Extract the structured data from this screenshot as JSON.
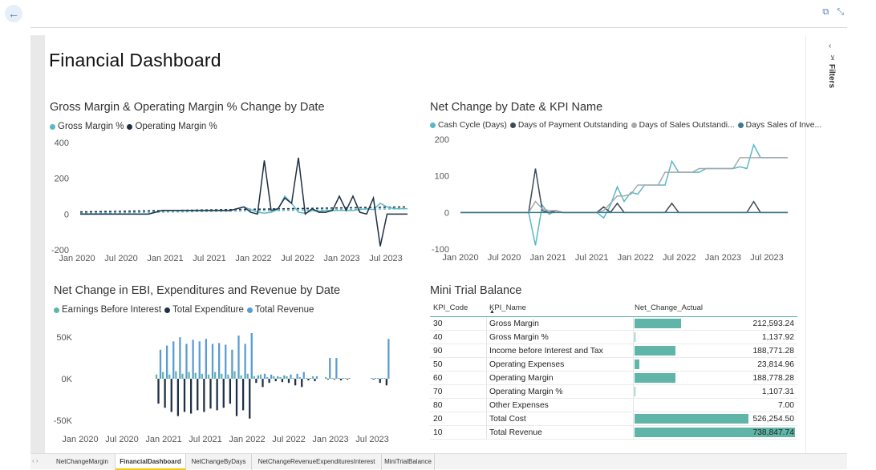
{
  "page": {
    "title": "Financial Dashboard",
    "filters_label": "Filters"
  },
  "colors": {
    "teal": "#5ab8c6",
    "navy": "#1f2f45",
    "slate": "#3e4a57",
    "gray": "#a3a9ad",
    "blue": "#5a9bd5",
    "green": "#5fb6a8"
  },
  "icons": {
    "back": "←",
    "popout": "⧉",
    "collapse": "⤡",
    "filters_chevron": "‹",
    "filter": "⊻"
  },
  "chart1": {
    "title": "Gross Margin & Operating Margin % Change by Date",
    "legend": [
      "Gross Margin %",
      "Operating Margin %"
    ]
  },
  "chart2": {
    "title": "Net Change by Date & KPI Name",
    "legend": [
      "Cash Cycle (Days)",
      "Days of Payment Outstanding",
      "Days of Sales Outstandi...",
      "Days Sales of Inve..."
    ]
  },
  "chart3": {
    "title": "Net Change in EBI, Expenditures and Revenue by Date",
    "legend": [
      "Earnings Before Interest",
      "Total Expenditure",
      "Total Revenue"
    ]
  },
  "chart_data": [
    {
      "type": "line",
      "title": "Gross Margin & Operating Margin % Change by Date",
      "xlabel": "",
      "ylabel": "",
      "x_ticks": [
        "Jan 2020",
        "Jul 2020",
        "Jan 2021",
        "Jul 2021",
        "Jan 2022",
        "Jul 2022",
        "Jan 2023",
        "Jul 2023"
      ],
      "y_ticks": [
        400,
        200,
        0,
        -200
      ],
      "ylim": [
        -200,
        400
      ],
      "xlim": [
        0,
        48
      ],
      "series": [
        {
          "name": "Gross Margin %",
          "color": "#5ab8c6",
          "x": [
            0,
            2,
            4,
            6,
            8,
            10,
            12,
            14,
            16,
            18,
            20,
            22,
            24,
            26,
            27,
            28,
            29,
            30,
            31,
            32,
            33,
            34,
            35,
            36,
            38,
            40,
            42,
            43,
            44,
            45,
            46,
            47,
            48
          ],
          "y": [
            0,
            0,
            0,
            0,
            0,
            0,
            20,
            20,
            20,
            20,
            20,
            20,
            40,
            10,
            5,
            10,
            25,
            100,
            60,
            10,
            5,
            20,
            15,
            20,
            20,
            20,
            30,
            25,
            60,
            40,
            30,
            30,
            30
          ]
        },
        {
          "name": "Operating Margin %",
          "color": "#1f2f45",
          "x": [
            0,
            2,
            4,
            6,
            8,
            10,
            12,
            14,
            16,
            18,
            20,
            22,
            24,
            25,
            26,
            27,
            28,
            29,
            30,
            31,
            32,
            33,
            34,
            35,
            36,
            37,
            38,
            39,
            40,
            41,
            42,
            43,
            44,
            45,
            46,
            47,
            48
          ],
          "y": [
            0,
            0,
            0,
            0,
            0,
            0,
            20,
            20,
            20,
            20,
            20,
            20,
            40,
            10,
            0,
            300,
            20,
            30,
            90,
            60,
            315,
            0,
            30,
            10,
            10,
            20,
            100,
            20,
            100,
            10,
            0,
            90,
            -180,
            0,
            0,
            0,
            0
          ]
        }
      ],
      "trend_lines": [
        {
          "name": "Gross Margin % trend",
          "color": "#1f2f45",
          "from": [
            0,
            12
          ],
          "to": [
            48,
            40
          ]
        },
        {
          "name": "Operating Margin % trend",
          "color": "#5ab8c6",
          "from": [
            0,
            5
          ],
          "to": [
            48,
            30
          ]
        }
      ]
    },
    {
      "type": "line",
      "title": "Net Change by Date & KPI Name",
      "xlabel": "",
      "ylabel": "",
      "x_ticks": [
        "Jan 2020",
        "Jul 2020",
        "Jan 2021",
        "Jul 2021",
        "Jan 2022",
        "Jul 2022",
        "Jan 2023",
        "Jul 2023"
      ],
      "y_ticks": [
        200,
        100,
        0,
        -100
      ],
      "ylim": [
        -100,
        200
      ],
      "xlim": [
        0,
        48
      ],
      "series": [
        {
          "name": "Cash Cycle (Days)",
          "color": "#5ab8c6",
          "x": [
            0,
            10,
            11,
            12,
            13,
            14,
            15,
            16,
            17,
            18,
            19,
            20,
            21,
            22,
            23,
            24,
            25,
            26,
            27,
            28,
            29,
            30,
            31,
            32,
            33,
            34,
            35,
            36,
            37,
            38,
            39,
            40,
            41,
            42,
            43,
            44,
            45,
            46,
            47,
            48
          ],
          "y": [
            0,
            0,
            -90,
            20,
            -5,
            5,
            0,
            0,
            0,
            0,
            0,
            0,
            -15,
            20,
            70,
            30,
            55,
            50,
            75,
            75,
            75,
            75,
            140,
            110,
            110,
            110,
            110,
            120,
            120,
            120,
            120,
            120,
            125,
            120,
            185,
            150,
            150,
            150,
            150,
            150
          ]
        },
        {
          "name": "Days of Payment Outstanding",
          "color": "#3e4a57",
          "x": [
            0,
            10,
            11,
            12,
            13,
            14,
            15,
            16,
            17,
            18,
            19,
            20,
            21,
            22,
            23,
            24,
            25,
            26,
            27,
            28,
            29,
            30,
            31,
            32,
            33,
            34,
            35,
            36,
            37,
            38,
            39,
            40,
            41,
            42,
            43,
            44,
            45,
            46,
            47,
            48
          ],
          "y": [
            0,
            0,
            120,
            5,
            0,
            5,
            0,
            0,
            0,
            0,
            0,
            0,
            15,
            0,
            25,
            0,
            0,
            0,
            0,
            0,
            0,
            0,
            25,
            0,
            0,
            0,
            0,
            0,
            0,
            0,
            0,
            0,
            0,
            0,
            30,
            0,
            0,
            0,
            0,
            0
          ]
        },
        {
          "name": "Days of Sales Outstanding",
          "color": "#a3a9ad",
          "x": [
            0,
            10,
            11,
            12,
            13,
            14,
            15,
            16,
            17,
            18,
            19,
            20,
            21,
            22,
            23,
            24,
            25,
            26,
            27,
            28,
            29,
            30,
            31,
            32,
            33,
            34,
            35,
            36,
            37,
            38,
            39,
            40,
            41,
            42,
            43,
            44,
            45,
            46,
            47,
            48
          ],
          "y": [
            0,
            0,
            30,
            10,
            5,
            5,
            0,
            0,
            0,
            0,
            0,
            0,
            5,
            25,
            45,
            45,
            50,
            75,
            75,
            75,
            75,
            110,
            110,
            110,
            110,
            110,
            120,
            120,
            120,
            120,
            120,
            120,
            150,
            150,
            150,
            150,
            150,
            150,
            150,
            150
          ]
        },
        {
          "name": "Days Sales of Inventory",
          "color": "#3c7a8a",
          "x": [
            0,
            48
          ],
          "y": [
            0,
            0
          ]
        }
      ]
    },
    {
      "type": "bar",
      "title": "Net Change in EBI, Expenditures and Revenue by Date",
      "xlabel": "",
      "ylabel": "",
      "x_ticks": [
        "Jan 2020",
        "Jul 2020",
        "Jan 2021",
        "Jul 2021",
        "Jan 2022",
        "Jul 2022",
        "Jan 2023",
        "Jul 2023"
      ],
      "y_ticks": [
        "50K",
        "0K",
        "-50K"
      ],
      "ylim": [
        -55000,
        55000
      ],
      "xlim": [
        0,
        48
      ],
      "categories": [
        12,
        13,
        14,
        15,
        16,
        17,
        18,
        19,
        20,
        21,
        22,
        23,
        24,
        25,
        26,
        27,
        28,
        29,
        30,
        31,
        32,
        33,
        34,
        35,
        36,
        38,
        39,
        40,
        41,
        45,
        46,
        47
      ],
      "series": [
        {
          "name": "Earnings Before Interest",
          "color": "#5fb6a8",
          "values": [
            5000,
            8000,
            5000,
            9000,
            6000,
            8000,
            7000,
            6000,
            5000,
            8000,
            6000,
            5000,
            9000,
            4000,
            6000,
            3000,
            5000,
            2000,
            3000,
            2000,
            3000,
            1000,
            2000,
            1000,
            3000,
            2000,
            1000,
            1000,
            1000,
            1000,
            1000,
            1000
          ]
        },
        {
          "name": "Total Expenditure",
          "color": "#1f2f45",
          "values": [
            -30000,
            -35000,
            -40000,
            -45000,
            -40000,
            -42000,
            -38000,
            -40000,
            -36000,
            -38000,
            -35000,
            -30000,
            -45000,
            -38000,
            -48000,
            -5000,
            -10000,
            -5000,
            -3000,
            -4000,
            -5000,
            -8000,
            -10000,
            -2000,
            -3000,
            -1000,
            -1000,
            -2000,
            -1000,
            -1000,
            -5000,
            -8000
          ]
        },
        {
          "name": "Total Revenue",
          "color": "#5a9bd5",
          "values": [
            35000,
            40000,
            45000,
            50000,
            42000,
            47000,
            45000,
            48000,
            42000,
            43000,
            41000,
            35000,
            52000,
            42000,
            55000,
            4000,
            6000,
            5000,
            3000,
            4000,
            5000,
            6000,
            8000,
            1000,
            3000,
            25000,
            25000,
            1000,
            1000,
            1000,
            1000,
            48000
          ]
        }
      ]
    }
  ],
  "table": {
    "title": "Mini Trial Balance",
    "columns": [
      "KPI_Code",
      "KPI_Name",
      "Net_Change_Actual"
    ],
    "rows": [
      {
        "code": "30",
        "name": "Gross Margin",
        "value": "212,593.24",
        "amount": 212593.24
      },
      {
        "code": "40",
        "name": "Gross Margin %",
        "value": "1,137.92",
        "amount": 1137.92
      },
      {
        "code": "90",
        "name": "Income before Interest and Tax",
        "value": "188,771.28",
        "amount": 188771.28
      },
      {
        "code": "50",
        "name": "Operating Expenses",
        "value": "23,814.96",
        "amount": 23814.96
      },
      {
        "code": "60",
        "name": "Operating Margin",
        "value": "188,778.28",
        "amount": 188778.28
      },
      {
        "code": "70",
        "name": "Operating Margin %",
        "value": "1,107.31",
        "amount": 1107.31
      },
      {
        "code": "80",
        "name": "Other Expenses",
        "value": "7.00",
        "amount": 7.0
      },
      {
        "code": "20",
        "name": "Total Cost",
        "value": "526,254.50",
        "amount": 526254.5
      },
      {
        "code": "10",
        "name": "Total Revenue",
        "value": "738,847.74",
        "amount": 738847.74
      }
    ]
  },
  "tabs": [
    "NetChangeMargin",
    "FinancialDashboard",
    "NetChangeByDays",
    "NetChangeRevenueExpendituresInterest",
    "MiniTrialBalance"
  ],
  "active_tab": "FinancialDashboard",
  "tab_nav": "‹ ›"
}
